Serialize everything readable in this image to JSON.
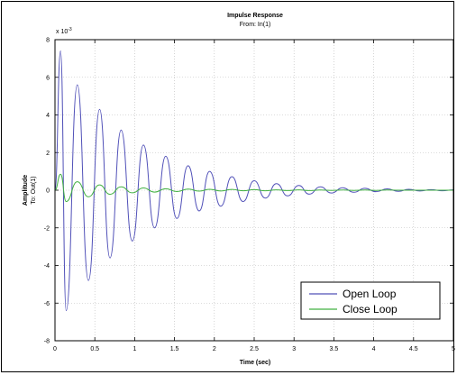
{
  "chart_data": {
    "type": "line",
    "title": "Impulse Response",
    "subtitle": "From: In(1)",
    "xlabel": "Time (sec)",
    "ylabel": "Amplitude",
    "ylabel2": "To: Out(1)",
    "y_multiplier_text": "x 10",
    "y_multiplier_exp": "-3",
    "xlim": [
      0,
      5
    ],
    "ylim": [
      -8,
      8
    ],
    "grid": true,
    "legend_position": "bottom-right",
    "x_ticks": [
      "0",
      "0.5",
      "1",
      "1.5",
      "2",
      "2.5",
      "3",
      "3.5",
      "4",
      "4.5",
      "5"
    ],
    "y_ticks": [
      "-8",
      "-6",
      "-4",
      "-2",
      "0",
      "2",
      "4",
      "6",
      "8"
    ],
    "x_tick_values": [
      0,
      0.5,
      1,
      1.5,
      2,
      2.5,
      3,
      3.5,
      4,
      4.5,
      5
    ],
    "y_tick_values": [
      -8,
      -6,
      -4,
      -2,
      0,
      2,
      4,
      6,
      8
    ],
    "series": [
      {
        "name": "Open Loop",
        "color": "#5050b8",
        "x": [
          0,
          0.07,
          0.14,
          0.28,
          0.42,
          0.56,
          0.69,
          0.83,
          0.97,
          1.11,
          1.25,
          1.39,
          1.53,
          1.67,
          1.81,
          1.94,
          2.08,
          2.22,
          2.36,
          2.5,
          2.64,
          2.78,
          2.92,
          3.06,
          3.19,
          3.33,
          3.47,
          3.61,
          3.75,
          3.89,
          4.03,
          4.17,
          4.31,
          4.44,
          4.58,
          4.72,
          4.86,
          5.0
        ],
        "y": [
          0,
          7.4,
          -6.4,
          5.6,
          -4.8,
          4.3,
          -3.6,
          3.2,
          -2.7,
          2.4,
          -2.0,
          1.8,
          -1.5,
          1.3,
          -1.1,
          1.0,
          -0.85,
          0.72,
          -0.6,
          0.5,
          -0.42,
          0.35,
          -0.3,
          0.25,
          -0.21,
          0.18,
          -0.15,
          0.13,
          -0.11,
          0.1,
          -0.08,
          0.07,
          -0.06,
          0.05,
          -0.04,
          0.03,
          -0.03,
          0.02
        ]
      },
      {
        "name": "Close Loop",
        "color": "#40b040",
        "x": [
          0,
          0.07,
          0.14,
          0.28,
          0.42,
          0.56,
          0.69,
          0.83,
          0.97,
          1.11,
          1.25,
          1.39,
          1.53,
          1.67,
          1.81,
          1.94,
          2.08,
          2.22,
          2.36,
          2.5,
          2.64,
          2.78,
          2.92,
          3.06,
          3.19,
          3.33,
          3.47,
          3.61,
          3.75,
          3.89,
          4.03,
          4.17,
          4.31,
          4.44,
          4.58,
          4.72,
          4.86,
          5.0
        ],
        "y": [
          0,
          0.85,
          -0.6,
          0.45,
          -0.35,
          0.28,
          -0.22,
          0.18,
          -0.14,
          0.12,
          -0.1,
          0.08,
          -0.07,
          0.06,
          -0.05,
          0.05,
          -0.04,
          0.04,
          -0.03,
          0.03,
          -0.03,
          0.02,
          -0.02,
          0.02,
          -0.02,
          0.01,
          -0.01,
          0.01,
          -0.01,
          0.01,
          -0.01,
          0.01,
          0,
          0,
          0,
          0,
          0,
          0
        ]
      }
    ]
  }
}
